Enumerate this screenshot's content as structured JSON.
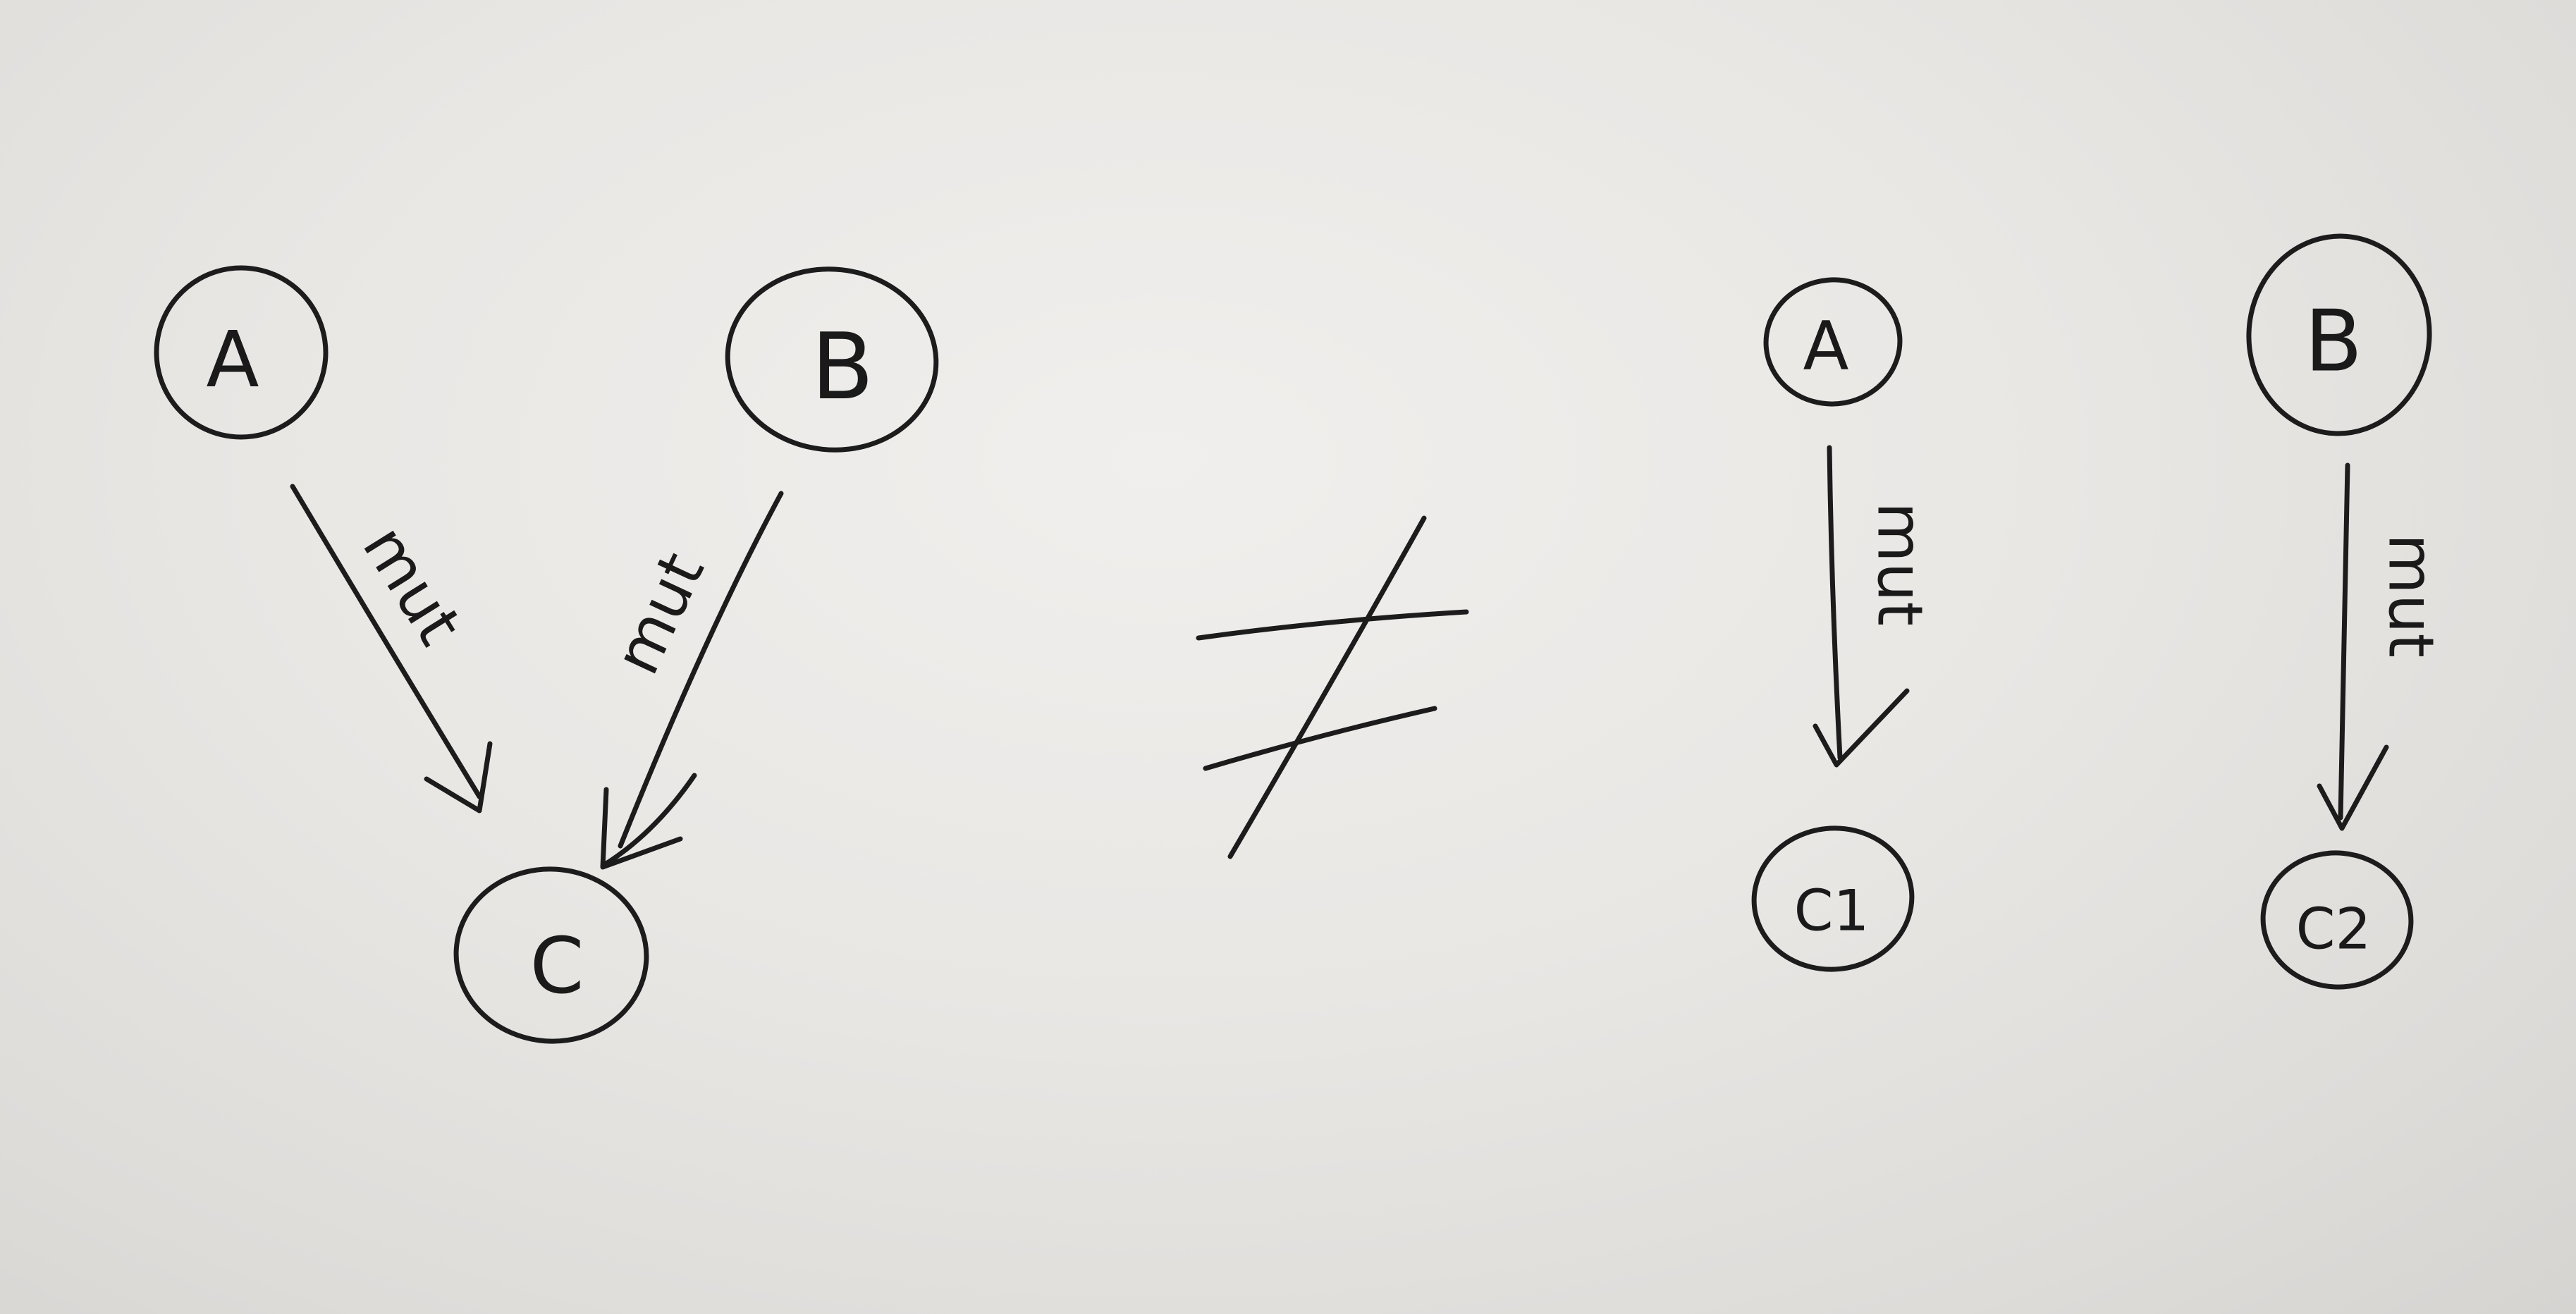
{
  "left_graph": {
    "nodes": [
      {
        "id": "a",
        "label": "A"
      },
      {
        "id": "b",
        "label": "B"
      },
      {
        "id": "c",
        "label": "C"
      }
    ],
    "edges": [
      {
        "from": "A",
        "to": "C",
        "label": "mut"
      },
      {
        "from": "B",
        "to": "C",
        "label": "mut"
      }
    ]
  },
  "relation_symbol": "≠",
  "right_graph": {
    "nodes": [
      {
        "id": "a",
        "label": "A"
      },
      {
        "id": "b",
        "label": "B"
      },
      {
        "id": "c1",
        "label": "C1"
      },
      {
        "id": "c2",
        "label": "C2"
      }
    ],
    "edges": [
      {
        "from": "A",
        "to": "C1",
        "label": "mut"
      },
      {
        "from": "B",
        "to": "C2",
        "label": "mut"
      }
    ]
  }
}
